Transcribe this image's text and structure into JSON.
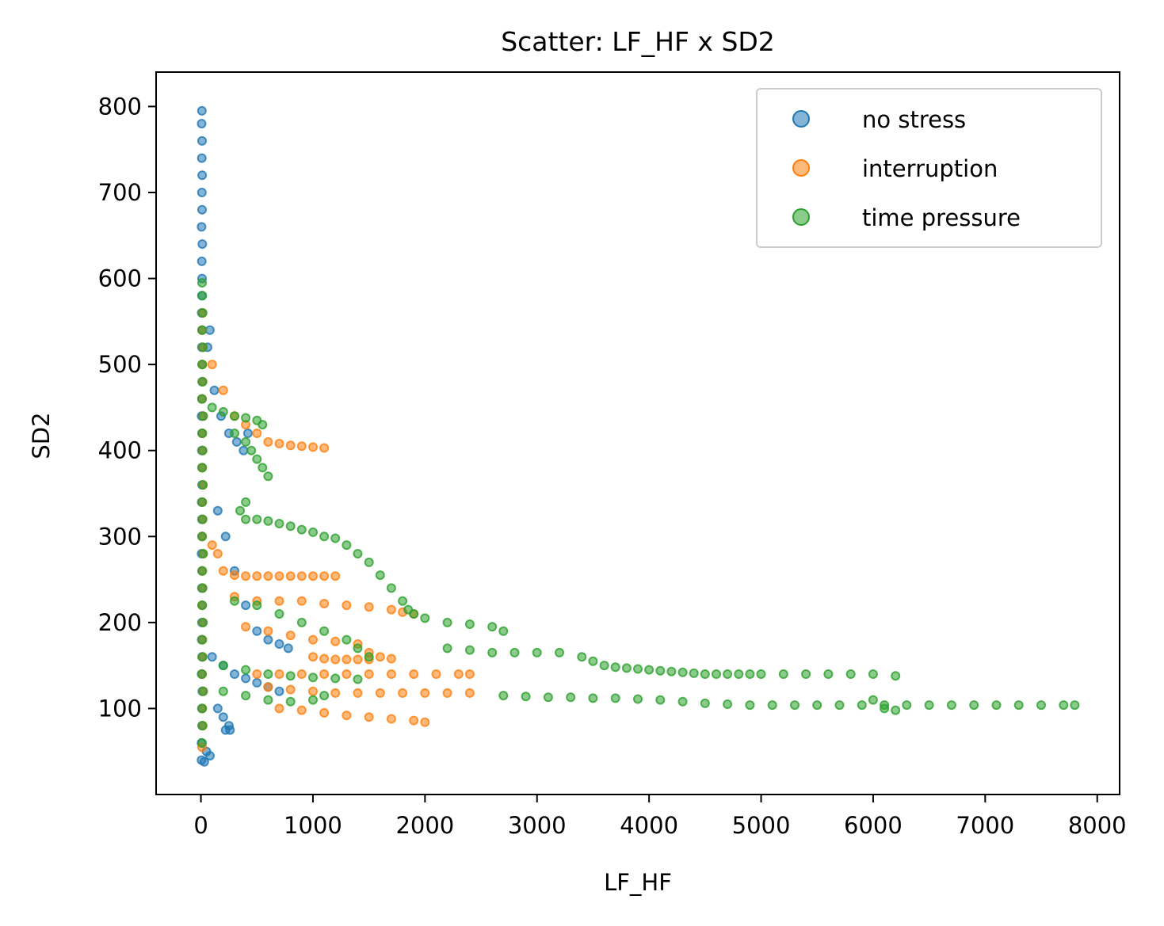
{
  "chart_data": {
    "type": "scatter",
    "title": "Scatter: LF_HF x SD2",
    "xlabel": "LF_HF",
    "ylabel": "SD2",
    "xlim": [
      -400,
      8200
    ],
    "ylim": [
      0,
      840
    ],
    "xticks": [
      0,
      1000,
      2000,
      3000,
      4000,
      5000,
      6000,
      7000,
      8000
    ],
    "yticks": [
      100,
      200,
      300,
      400,
      500,
      600,
      700,
      800
    ],
    "grid": false,
    "legend_position": "top-right",
    "series": [
      {
        "name": "no stress",
        "color": "#1f77b4",
        "points": [
          [
            5,
            40
          ],
          [
            5,
            60
          ],
          [
            10,
            80
          ],
          [
            8,
            100
          ],
          [
            12,
            120
          ],
          [
            6,
            140
          ],
          [
            10,
            160
          ],
          [
            7,
            180
          ],
          [
            9,
            200
          ],
          [
            12,
            220
          ],
          [
            8,
            240
          ],
          [
            10,
            260
          ],
          [
            6,
            280
          ],
          [
            11,
            300
          ],
          [
            9,
            320
          ],
          [
            7,
            340
          ],
          [
            10,
            360
          ],
          [
            12,
            380
          ],
          [
            8,
            400
          ],
          [
            10,
            420
          ],
          [
            6,
            440
          ],
          [
            9,
            460
          ],
          [
            11,
            480
          ],
          [
            10,
            500
          ],
          [
            8,
            520
          ],
          [
            12,
            540
          ],
          [
            7,
            560
          ],
          [
            9,
            580
          ],
          [
            10,
            600
          ],
          [
            8,
            620
          ],
          [
            12,
            640
          ],
          [
            6,
            660
          ],
          [
            10,
            680
          ],
          [
            9,
            700
          ],
          [
            11,
            720
          ],
          [
            8,
            740
          ],
          [
            10,
            760
          ],
          [
            7,
            780
          ],
          [
            9,
            795
          ],
          [
            80,
            540
          ],
          [
            60,
            520
          ],
          [
            120,
            470
          ],
          [
            180,
            440
          ],
          [
            250,
            420
          ],
          [
            320,
            410
          ],
          [
            380,
            400
          ],
          [
            420,
            420
          ],
          [
            150,
            330
          ],
          [
            220,
            300
          ],
          [
            300,
            260
          ],
          [
            400,
            220
          ],
          [
            500,
            190
          ],
          [
            600,
            180
          ],
          [
            700,
            175
          ],
          [
            780,
            170
          ],
          [
            100,
            160
          ],
          [
            200,
            150
          ],
          [
            300,
            140
          ],
          [
            400,
            135
          ],
          [
            500,
            130
          ],
          [
            600,
            125
          ],
          [
            700,
            120
          ],
          [
            150,
            100
          ],
          [
            200,
            90
          ],
          [
            250,
            80
          ],
          [
            220,
            75
          ],
          [
            260,
            75
          ],
          [
            50,
            50
          ],
          [
            80,
            45
          ],
          [
            30,
            38
          ]
        ]
      },
      {
        "name": "interruption",
        "color": "#ff7f0e",
        "points": [
          [
            10,
            55
          ],
          [
            15,
            80
          ],
          [
            12,
            100
          ],
          [
            20,
            120
          ],
          [
            10,
            140
          ],
          [
            15,
            160
          ],
          [
            12,
            180
          ],
          [
            18,
            200
          ],
          [
            10,
            220
          ],
          [
            15,
            240
          ],
          [
            12,
            260
          ],
          [
            20,
            280
          ],
          [
            10,
            300
          ],
          [
            15,
            320
          ],
          [
            12,
            340
          ],
          [
            18,
            360
          ],
          [
            10,
            380
          ],
          [
            15,
            400
          ],
          [
            12,
            420
          ],
          [
            20,
            440
          ],
          [
            10,
            460
          ],
          [
            15,
            480
          ],
          [
            12,
            500
          ],
          [
            18,
            520
          ],
          [
            10,
            540
          ],
          [
            15,
            560
          ],
          [
            100,
            500
          ],
          [
            200,
            470
          ],
          [
            300,
            440
          ],
          [
            400,
            430
          ],
          [
            500,
            420
          ],
          [
            600,
            410
          ],
          [
            700,
            408
          ],
          [
            800,
            406
          ],
          [
            900,
            405
          ],
          [
            1000,
            404
          ],
          [
            1100,
            403
          ],
          [
            100,
            290
          ],
          [
            150,
            280
          ],
          [
            200,
            260
          ],
          [
            300,
            255
          ],
          [
            400,
            254
          ],
          [
            500,
            254
          ],
          [
            600,
            254
          ],
          [
            700,
            254
          ],
          [
            800,
            254
          ],
          [
            900,
            254
          ],
          [
            1000,
            254
          ],
          [
            1100,
            254
          ],
          [
            1200,
            254
          ],
          [
            300,
            230
          ],
          [
            500,
            225
          ],
          [
            700,
            225
          ],
          [
            900,
            225
          ],
          [
            1100,
            222
          ],
          [
            1300,
            220
          ],
          [
            1500,
            218
          ],
          [
            1700,
            215
          ],
          [
            1800,
            212
          ],
          [
            1900,
            210
          ],
          [
            400,
            195
          ],
          [
            600,
            190
          ],
          [
            800,
            185
          ],
          [
            1000,
            180
          ],
          [
            1200,
            178
          ],
          [
            1400,
            175
          ],
          [
            1500,
            165
          ],
          [
            1600,
            160
          ],
          [
            1700,
            158
          ],
          [
            1000,
            160
          ],
          [
            1100,
            158
          ],
          [
            1200,
            157
          ],
          [
            1300,
            157
          ],
          [
            1400,
            157
          ],
          [
            1500,
            157
          ],
          [
            500,
            140
          ],
          [
            700,
            140
          ],
          [
            900,
            140
          ],
          [
            1100,
            140
          ],
          [
            1300,
            140
          ],
          [
            1500,
            140
          ],
          [
            1700,
            140
          ],
          [
            1900,
            140
          ],
          [
            2100,
            140
          ],
          [
            2300,
            140
          ],
          [
            2400,
            140
          ],
          [
            600,
            125
          ],
          [
            800,
            122
          ],
          [
            1000,
            120
          ],
          [
            1200,
            118
          ],
          [
            1400,
            118
          ],
          [
            1600,
            118
          ],
          [
            1800,
            118
          ],
          [
            2000,
            118
          ],
          [
            2200,
            118
          ],
          [
            2400,
            118
          ],
          [
            700,
            100
          ],
          [
            900,
            98
          ],
          [
            1100,
            95
          ],
          [
            1300,
            92
          ],
          [
            1500,
            90
          ],
          [
            1700,
            88
          ],
          [
            1900,
            86
          ],
          [
            2000,
            84
          ]
        ]
      },
      {
        "name": "time pressure",
        "color": "#2ca02c",
        "points": [
          [
            10,
            60
          ],
          [
            15,
            80
          ],
          [
            12,
            100
          ],
          [
            20,
            120
          ],
          [
            10,
            140
          ],
          [
            15,
            160
          ],
          [
            12,
            180
          ],
          [
            18,
            200
          ],
          [
            10,
            220
          ],
          [
            15,
            240
          ],
          [
            12,
            260
          ],
          [
            20,
            280
          ],
          [
            10,
            300
          ],
          [
            15,
            320
          ],
          [
            12,
            340
          ],
          [
            18,
            360
          ],
          [
            10,
            380
          ],
          [
            15,
            400
          ],
          [
            12,
            420
          ],
          [
            20,
            440
          ],
          [
            10,
            460
          ],
          [
            15,
            480
          ],
          [
            12,
            500
          ],
          [
            18,
            520
          ],
          [
            10,
            540
          ],
          [
            15,
            560
          ],
          [
            12,
            580
          ],
          [
            10,
            595
          ],
          [
            100,
            450
          ],
          [
            200,
            445
          ],
          [
            300,
            440
          ],
          [
            400,
            438
          ],
          [
            500,
            435
          ],
          [
            550,
            430
          ],
          [
            300,
            420
          ],
          [
            400,
            410
          ],
          [
            450,
            400
          ],
          [
            500,
            390
          ],
          [
            550,
            380
          ],
          [
            600,
            370
          ],
          [
            400,
            340
          ],
          [
            350,
            330
          ],
          [
            400,
            320
          ],
          [
            500,
            320
          ],
          [
            600,
            318
          ],
          [
            700,
            315
          ],
          [
            800,
            312
          ],
          [
            900,
            308
          ],
          [
            1000,
            305
          ],
          [
            1100,
            300
          ],
          [
            1200,
            298
          ],
          [
            1300,
            290
          ],
          [
            1400,
            280
          ],
          [
            1500,
            270
          ],
          [
            1600,
            255
          ],
          [
            1700,
            240
          ],
          [
            1800,
            225
          ],
          [
            1850,
            215
          ],
          [
            1900,
            210
          ],
          [
            2000,
            205
          ],
          [
            2200,
            200
          ],
          [
            2400,
            198
          ],
          [
            2600,
            195
          ],
          [
            2700,
            190
          ],
          [
            2200,
            170
          ],
          [
            2400,
            168
          ],
          [
            2600,
            165
          ],
          [
            2800,
            165
          ],
          [
            3000,
            165
          ],
          [
            3200,
            165
          ],
          [
            3400,
            160
          ],
          [
            3500,
            155
          ],
          [
            3600,
            150
          ],
          [
            3700,
            148
          ],
          [
            3800,
            147
          ],
          [
            3900,
            146
          ],
          [
            4000,
            145
          ],
          [
            4100,
            144
          ],
          [
            4200,
            143
          ],
          [
            4300,
            142
          ],
          [
            4400,
            141
          ],
          [
            4500,
            140
          ],
          [
            4600,
            140
          ],
          [
            4700,
            140
          ],
          [
            4800,
            140
          ],
          [
            4900,
            140
          ],
          [
            5000,
            140
          ],
          [
            5200,
            140
          ],
          [
            5400,
            140
          ],
          [
            5600,
            140
          ],
          [
            5800,
            140
          ],
          [
            6000,
            140
          ],
          [
            6200,
            138
          ],
          [
            2700,
            115
          ],
          [
            2900,
            114
          ],
          [
            3100,
            113
          ],
          [
            3300,
            113
          ],
          [
            3500,
            112
          ],
          [
            3700,
            112
          ],
          [
            3900,
            111
          ],
          [
            4100,
            110
          ],
          [
            4300,
            108
          ],
          [
            4500,
            106
          ],
          [
            4700,
            105
          ],
          [
            4900,
            104
          ],
          [
            5100,
            104
          ],
          [
            5300,
            104
          ],
          [
            5500,
            104
          ],
          [
            5700,
            104
          ],
          [
            5900,
            104
          ],
          [
            6100,
            104
          ],
          [
            6300,
            104
          ],
          [
            6500,
            104
          ],
          [
            6700,
            104
          ],
          [
            6900,
            104
          ],
          [
            7100,
            104
          ],
          [
            7300,
            104
          ],
          [
            7500,
            104
          ],
          [
            7700,
            104
          ],
          [
            7800,
            104
          ],
          [
            6000,
            110
          ],
          [
            6100,
            100
          ],
          [
            6200,
            98
          ],
          [
            300,
            225
          ],
          [
            500,
            220
          ],
          [
            700,
            210
          ],
          [
            900,
            200
          ],
          [
            1100,
            190
          ],
          [
            1300,
            180
          ],
          [
            1400,
            170
          ],
          [
            1500,
            160
          ],
          [
            200,
            150
          ],
          [
            400,
            145
          ],
          [
            600,
            140
          ],
          [
            800,
            138
          ],
          [
            1000,
            136
          ],
          [
            1200,
            135
          ],
          [
            1400,
            134
          ],
          [
            200,
            120
          ],
          [
            400,
            115
          ],
          [
            600,
            110
          ],
          [
            800,
            108
          ],
          [
            1000,
            110
          ],
          [
            1100,
            115
          ]
        ]
      }
    ]
  }
}
